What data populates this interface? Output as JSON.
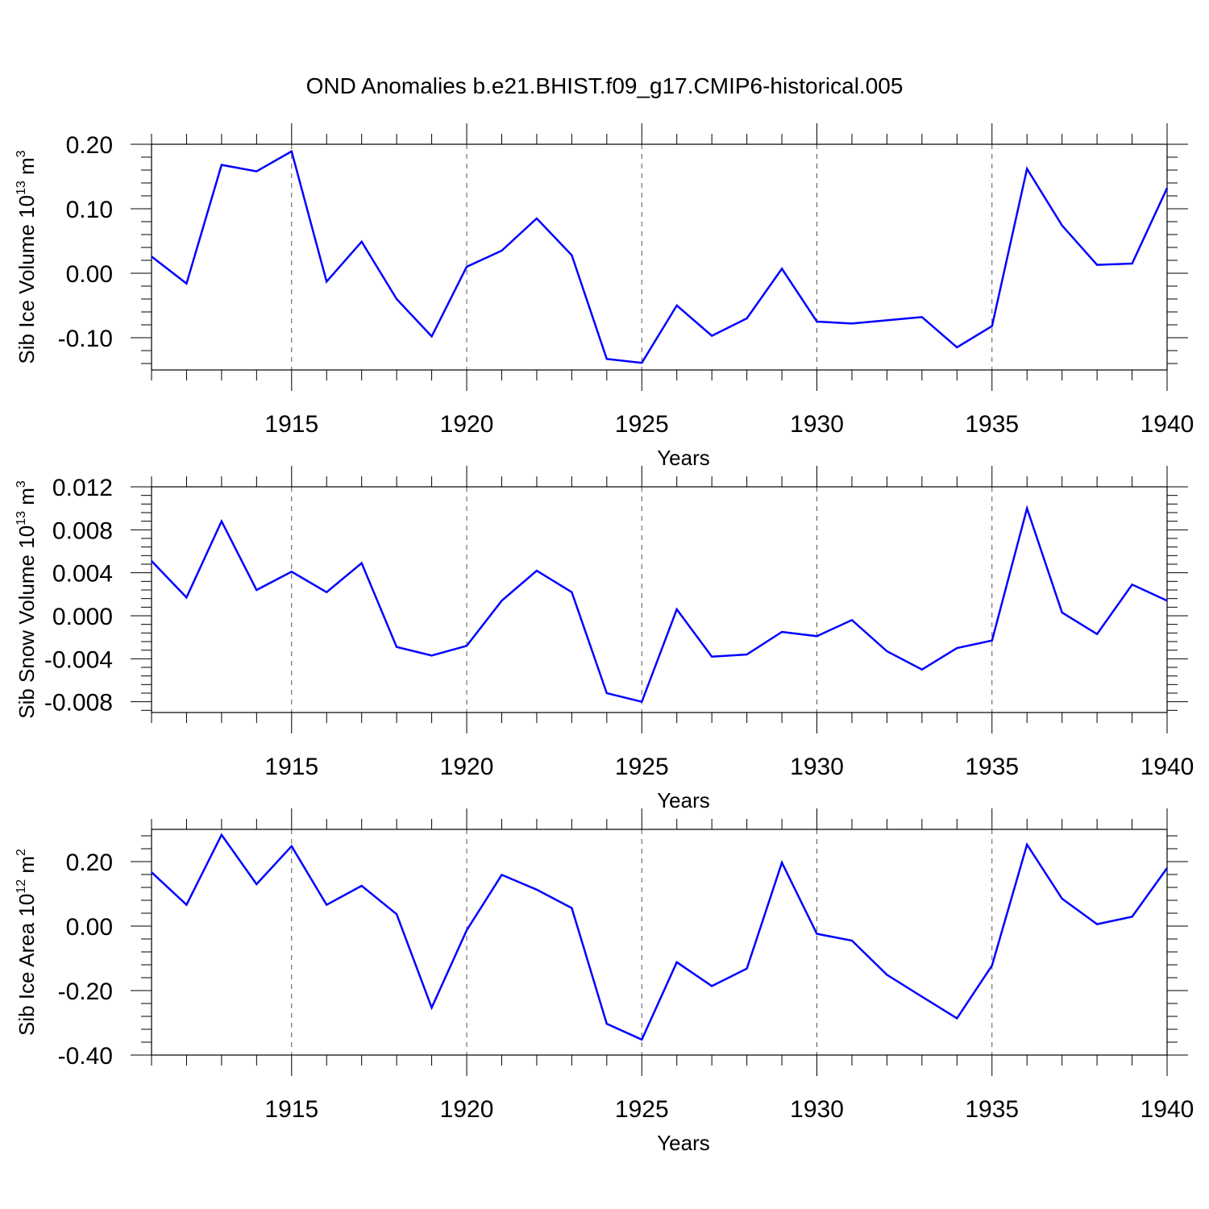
{
  "title": "OND Anomalies b.e21.BHIST.f09_g17.CMIP6-historical.005",
  "colors": {
    "line": "#0000ff",
    "axis": "#000000",
    "grid": "#555555"
  },
  "chart_data": [
    {
      "type": "line",
      "ylabel_main": "Sib Ice Volume 10",
      "ylabel_exp": "13",
      "ylabel_unit": " m",
      "ylabel_unit_exp": "3",
      "xlabel": "Years",
      "ylim": [
        -0.15,
        0.2
      ],
      "xlim": [
        1911,
        1940
      ],
      "yticks": [
        -0.1,
        0.0,
        0.1,
        0.2
      ],
      "ytick_labels": [
        "-0.10",
        "0.00",
        "0.10",
        "0.20"
      ],
      "xticks": [
        1915,
        1920,
        1925,
        1930,
        1935,
        1940
      ],
      "xtick_labels": [
        "1915",
        "1920",
        "1925",
        "1930",
        "1935",
        "1940"
      ],
      "x": [
        1911,
        1912,
        1913,
        1914,
        1915,
        1916,
        1917,
        1918,
        1919,
        1920,
        1921,
        1922,
        1923,
        1924,
        1925,
        1926,
        1927,
        1928,
        1929,
        1930,
        1931,
        1932,
        1933,
        1934,
        1935,
        1936,
        1937,
        1938,
        1939,
        1940
      ],
      "values": [
        0.026,
        -0.016,
        0.168,
        0.158,
        0.189,
        -0.013,
        0.049,
        -0.04,
        -0.098,
        0.01,
        0.035,
        0.085,
        0.028,
        -0.133,
        -0.139,
        -0.05,
        -0.097,
        -0.07,
        0.007,
        -0.075,
        -0.078,
        -0.073,
        -0.068,
        -0.115,
        -0.082,
        0.162,
        0.074,
        0.013,
        0.015,
        0.132
      ]
    },
    {
      "type": "line",
      "ylabel_main": "Sib Snow Volume 10",
      "ylabel_exp": "13",
      "ylabel_unit": " m",
      "ylabel_unit_exp": "3",
      "xlabel": "Years",
      "ylim": [
        -0.009,
        0.012
      ],
      "xlim": [
        1911,
        1940
      ],
      "yticks": [
        -0.008,
        -0.004,
        0.0,
        0.004,
        0.008,
        0.012
      ],
      "ytick_labels": [
        "-0.008",
        "-0.004",
        "0.000",
        "0.004",
        "0.008",
        "0.012"
      ],
      "xticks": [
        1915,
        1920,
        1925,
        1930,
        1935,
        1940
      ],
      "xtick_labels": [
        "1915",
        "1920",
        "1925",
        "1930",
        "1935",
        "1940"
      ],
      "x": [
        1911,
        1912,
        1913,
        1914,
        1915,
        1916,
        1917,
        1918,
        1919,
        1920,
        1921,
        1922,
        1923,
        1924,
        1925,
        1926,
        1927,
        1928,
        1929,
        1930,
        1931,
        1932,
        1933,
        1934,
        1935,
        1936,
        1937,
        1938,
        1939,
        1940
      ],
      "values": [
        0.0051,
        0.0017,
        0.0088,
        0.0024,
        0.0041,
        0.0022,
        0.0049,
        -0.0029,
        -0.0037,
        -0.0028,
        0.0014,
        0.0042,
        0.0022,
        -0.0072,
        -0.008,
        0.0006,
        -0.0038,
        -0.0036,
        -0.0015,
        -0.0019,
        -0.0004,
        -0.0033,
        -0.005,
        -0.003,
        -0.0023,
        0.01,
        0.0003,
        -0.0017,
        0.0029,
        0.0014
      ]
    },
    {
      "type": "line",
      "ylabel_main": "Sib Ice Area 10",
      "ylabel_exp": "12",
      "ylabel_unit": " m",
      "ylabel_unit_exp": "2",
      "xlabel": "Years",
      "ylim": [
        -0.4,
        0.3
      ],
      "xlim": [
        1911,
        1940
      ],
      "yticks": [
        -0.4,
        -0.2,
        0.0,
        0.2
      ],
      "ytick_labels": [
        "-0.40",
        "-0.20",
        "0.00",
        "0.20"
      ],
      "xticks": [
        1915,
        1920,
        1925,
        1930,
        1935,
        1940
      ],
      "xtick_labels": [
        "1915",
        "1920",
        "1925",
        "1930",
        "1935",
        "1940"
      ],
      "x": [
        1911,
        1912,
        1913,
        1914,
        1915,
        1916,
        1917,
        1918,
        1919,
        1920,
        1921,
        1922,
        1923,
        1924,
        1925,
        1926,
        1927,
        1928,
        1929,
        1930,
        1931,
        1932,
        1933,
        1934,
        1935,
        1936,
        1937,
        1938,
        1939,
        1940
      ],
      "values": [
        0.167,
        0.066,
        0.283,
        0.13,
        0.248,
        0.066,
        0.125,
        0.037,
        -0.253,
        -0.013,
        0.159,
        0.113,
        0.056,
        -0.303,
        -0.352,
        -0.112,
        -0.186,
        -0.132,
        0.197,
        -0.024,
        -0.045,
        -0.151,
        -0.219,
        -0.286,
        -0.122,
        0.253,
        0.085,
        0.006,
        0.029,
        0.18
      ]
    }
  ]
}
